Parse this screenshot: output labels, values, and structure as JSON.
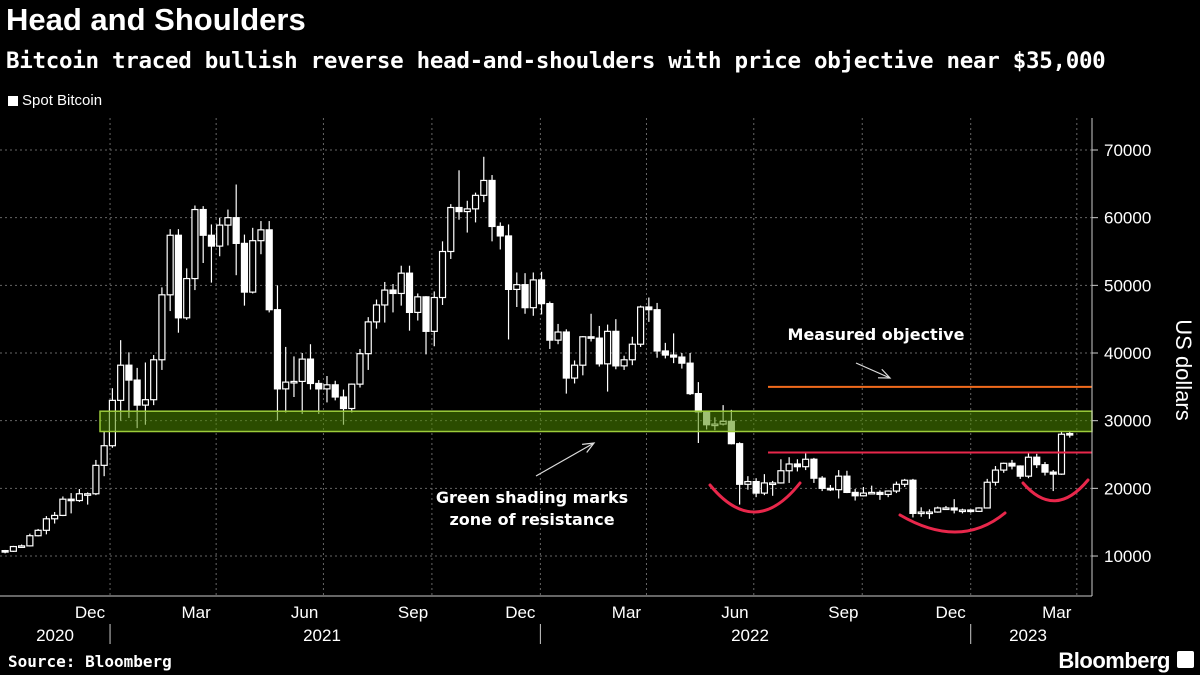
{
  "title": "Head and Shoulders",
  "subtitle": "Bitcoin traced bullish reverse head-and-shoulders with price objective near $35,000",
  "legend": "Spot Bitcoin",
  "source": "Source: Bloomberg",
  "logo": "Bloomberg",
  "colors": {
    "background": "#000000",
    "candle": "#ffffff",
    "resistance_zone": "#4f8a00",
    "resistance_border": "#9ccc3a",
    "objective_line": "#f26b1d",
    "neckline": "#e8274b",
    "shoulder_arcs": "#e8274b"
  },
  "chart_data": {
    "type": "candlestick",
    "ylabel": "US dollars",
    "ylim": [
      3000,
      75000
    ],
    "yticks": [
      10000,
      20000,
      30000,
      40000,
      50000,
      60000,
      70000
    ],
    "grid": true,
    "xticks": [
      {
        "label": "Dec",
        "date": "2020-12-15"
      },
      {
        "label": "Mar",
        "date": "2021-03-15"
      },
      {
        "label": "Jun",
        "date": "2021-06-15"
      },
      {
        "label": "Sep",
        "date": "2021-09-15"
      },
      {
        "label": "Dec",
        "date": "2021-12-15"
      },
      {
        "label": "Mar",
        "date": "2022-03-15"
      },
      {
        "label": "Jun",
        "date": "2022-06-15"
      },
      {
        "label": "Sep",
        "date": "2022-09-15"
      },
      {
        "label": "Dec",
        "date": "2022-12-15"
      },
      {
        "label": "Mar",
        "date": "2023-03-15"
      }
    ],
    "years": [
      {
        "label": "2020"
      },
      {
        "label": "2021"
      },
      {
        "label": "2022"
      },
      {
        "label": "2023"
      }
    ],
    "resistance_zone": [
      28400,
      31400
    ],
    "objective_level": 35000,
    "neckline_level": 25300,
    "annotations": {
      "objective": "Measured objective",
      "zone_line1": "Green shading marks",
      "zone_line2": "zone of resistance"
    },
    "columns": [
      "week_ending",
      "open",
      "high",
      "low",
      "close"
    ],
    "candles": [
      [
        "2020-10-04",
        10800,
        10900,
        10400,
        10700
      ],
      [
        "2020-10-11",
        10700,
        11500,
        10600,
        11400
      ],
      [
        "2020-10-18",
        11400,
        11700,
        11200,
        11500
      ],
      [
        "2020-10-25",
        11500,
        13300,
        11400,
        13000
      ],
      [
        "2020-11-01",
        13000,
        14000,
        12900,
        13800
      ],
      [
        "2020-11-08",
        13800,
        15900,
        13200,
        15500
      ],
      [
        "2020-11-15",
        15500,
        16500,
        14800,
        16000
      ],
      [
        "2020-11-22",
        16000,
        18800,
        15900,
        18400
      ],
      [
        "2020-11-29",
        18400,
        19300,
        16300,
        18200
      ],
      [
        "2020-12-06",
        18200,
        19900,
        18000,
        19200
      ],
      [
        "2020-12-13",
        19200,
        19400,
        17600,
        19200
      ],
      [
        "2020-12-20",
        19200,
        24200,
        19000,
        23400
      ],
      [
        "2020-12-27",
        23400,
        28400,
        21800,
        26300
      ],
      [
        "2021-01-03",
        26300,
        34800,
        26000,
        33000
      ],
      [
        "2021-01-10",
        33000,
        41900,
        30000,
        38200
      ],
      [
        "2021-01-17",
        38200,
        40100,
        30400,
        36000
      ],
      [
        "2021-01-24",
        36000,
        37800,
        28900,
        32300
      ],
      [
        "2021-01-31",
        32300,
        38600,
        29400,
        33100
      ],
      [
        "2021-02-07",
        33100,
        39700,
        32300,
        39000
      ],
      [
        "2021-02-14",
        39000,
        49700,
        37500,
        48600
      ],
      [
        "2021-02-21",
        48600,
        58300,
        46200,
        57400
      ],
      [
        "2021-02-28",
        57400,
        58300,
        43000,
        45200
      ],
      [
        "2021-03-07",
        45200,
        52500,
        44900,
        51000
      ],
      [
        "2021-03-14",
        51000,
        61800,
        49300,
        61200
      ],
      [
        "2021-03-21",
        61200,
        61700,
        53300,
        57400
      ],
      [
        "2021-03-28",
        57400,
        59000,
        50400,
        55800
      ],
      [
        "2021-04-04",
        55800,
        60000,
        54300,
        58900
      ],
      [
        "2021-04-11",
        58900,
        61200,
        55900,
        60000
      ],
      [
        "2021-04-18",
        60000,
        64900,
        51500,
        56200
      ],
      [
        "2021-04-25",
        56200,
        57500,
        47000,
        49000
      ],
      [
        "2021-05-02",
        49000,
        58500,
        48800,
        56600
      ],
      [
        "2021-05-09",
        56600,
        59500,
        54600,
        58200
      ],
      [
        "2021-05-16",
        58200,
        59500,
        46000,
        46400
      ],
      [
        "2021-05-23",
        46400,
        50000,
        30000,
        34700
      ],
      [
        "2021-05-30",
        34700,
        40900,
        31200,
        35700
      ],
      [
        "2021-06-06",
        35700,
        39500,
        33500,
        35800
      ],
      [
        "2021-06-13",
        35800,
        40000,
        31000,
        39100
      ],
      [
        "2021-06-20",
        39100,
        41300,
        34600,
        35500
      ],
      [
        "2021-06-27",
        35500,
        36000,
        31000,
        34700
      ],
      [
        "2021-07-04",
        34700,
        36600,
        32700,
        35300
      ],
      [
        "2021-07-11",
        35300,
        35900,
        33000,
        33500
      ],
      [
        "2021-07-18",
        33500,
        34600,
        29400,
        31800
      ],
      [
        "2021-07-25",
        31800,
        35500,
        31200,
        35400
      ],
      [
        "2021-08-01",
        35400,
        40600,
        34900,
        39900
      ],
      [
        "2021-08-08",
        39900,
        45300,
        37500,
        44600
      ],
      [
        "2021-08-15",
        44600,
        47900,
        43600,
        47100
      ],
      [
        "2021-08-22",
        47100,
        50500,
        44500,
        49300
      ],
      [
        "2021-08-29",
        49300,
        50200,
        46000,
        48800
      ],
      [
        "2021-09-05",
        48800,
        52900,
        47000,
        51800
      ],
      [
        "2021-09-12",
        51800,
        52900,
        43300,
        46000
      ],
      [
        "2021-09-19",
        46000,
        48800,
        44800,
        48300
      ],
      [
        "2021-09-26",
        48300,
        48400,
        39800,
        43200
      ],
      [
        "2021-10-03",
        43200,
        49100,
        41000,
        48200
      ],
      [
        "2021-10-10",
        48200,
        56500,
        47100,
        55000
      ],
      [
        "2021-10-17",
        55000,
        62000,
        53900,
        61500
      ],
      [
        "2021-10-24",
        61500,
        67000,
        59700,
        60900
      ],
      [
        "2021-10-31",
        60900,
        62500,
        57800,
        61300
      ],
      [
        "2021-11-07",
        61300,
        63700,
        59300,
        63300
      ],
      [
        "2021-11-14",
        63300,
        69000,
        62300,
        65500
      ],
      [
        "2021-11-21",
        65500,
        66300,
        56500,
        58700
      ],
      [
        "2021-11-28",
        58700,
        59300,
        55300,
        57300
      ],
      [
        "2021-12-05",
        57300,
        59000,
        42000,
        49400
      ],
      [
        "2021-12-12",
        49400,
        51900,
        46800,
        50100
      ],
      [
        "2021-12-19",
        50100,
        51800,
        45800,
        46700
      ],
      [
        "2021-12-26",
        46700,
        51900,
        45500,
        50800
      ],
      [
        "2022-01-02",
        50800,
        52000,
        45700,
        47300
      ],
      [
        "2022-01-09",
        47300,
        47600,
        40600,
        41900
      ],
      [
        "2022-01-16",
        41900,
        44300,
        41300,
        43100
      ],
      [
        "2022-01-23",
        43100,
        43500,
        34000,
        36300
      ],
      [
        "2022-01-30",
        36300,
        38900,
        35500,
        38200
      ],
      [
        "2022-02-06",
        38200,
        42500,
        36700,
        42400
      ],
      [
        "2022-02-13",
        42400,
        45800,
        41700,
        42200
      ],
      [
        "2022-02-20",
        42200,
        44000,
        38000,
        38400
      ],
      [
        "2022-02-27",
        38400,
        44200,
        34300,
        43200
      ],
      [
        "2022-03-06",
        43200,
        45000,
        37600,
        38100
      ],
      [
        "2022-03-13",
        38100,
        39600,
        37500,
        39000
      ],
      [
        "2022-03-20",
        39000,
        42400,
        38200,
        41300
      ],
      [
        "2022-03-27",
        41300,
        47000,
        40900,
        46800
      ],
      [
        "2022-04-03",
        46800,
        48200,
        44600,
        46400
      ],
      [
        "2022-04-10",
        46400,
        47400,
        39300,
        40300
      ],
      [
        "2022-04-17",
        40300,
        41500,
        39200,
        39700
      ],
      [
        "2022-04-24",
        39700,
        42900,
        38500,
        39400
      ],
      [
        "2022-05-01",
        39400,
        40000,
        37700,
        38500
      ],
      [
        "2022-05-08",
        38500,
        40000,
        33800,
        34000
      ],
      [
        "2022-05-15",
        34000,
        35700,
        26700,
        31300
      ],
      [
        "2022-05-22",
        31300,
        31500,
        28700,
        29400
      ],
      [
        "2022-05-29",
        29400,
        30500,
        28600,
        29500
      ],
      [
        "2022-06-05",
        29500,
        32300,
        29300,
        29900
      ],
      [
        "2022-06-12",
        29900,
        31600,
        26500,
        26600
      ],
      [
        "2022-06-19",
        26600,
        26800,
        17600,
        20600
      ],
      [
        "2022-06-26",
        20600,
        21800,
        19800,
        21000
      ],
      [
        "2022-07-03",
        21000,
        21500,
        18700,
        19300
      ],
      [
        "2022-07-10",
        19300,
        22100,
        19000,
        20800
      ],
      [
        "2022-07-17",
        20800,
        21100,
        18900,
        20800
      ],
      [
        "2022-07-24",
        20800,
        24300,
        20700,
        22600
      ],
      [
        "2022-07-31",
        22600,
        24600,
        20800,
        23600
      ],
      [
        "2022-08-07",
        23600,
        24300,
        22500,
        23200
      ],
      [
        "2022-08-14",
        23200,
        25200,
        22700,
        24300
      ],
      [
        "2022-08-21",
        24300,
        24500,
        20800,
        21500
      ],
      [
        "2022-08-28",
        21500,
        21800,
        19600,
        20000
      ],
      [
        "2022-09-04",
        20000,
        20500,
        19600,
        19800
      ],
      [
        "2022-09-11",
        19800,
        22700,
        18500,
        21800
      ],
      [
        "2022-09-18",
        21800,
        22600,
        19300,
        19400
      ],
      [
        "2022-09-25",
        19400,
        19900,
        18200,
        18900
      ],
      [
        "2022-10-02",
        18900,
        20200,
        18800,
        19300
      ],
      [
        "2022-10-09",
        19300,
        20400,
        19100,
        19400
      ],
      [
        "2022-10-16",
        19400,
        19700,
        18300,
        19100
      ],
      [
        "2022-10-23",
        19100,
        19700,
        18700,
        19600
      ],
      [
        "2022-10-30",
        19600,
        21000,
        19300,
        20600
      ],
      [
        "2022-11-06",
        20600,
        21400,
        20200,
        21200
      ],
      [
        "2022-11-13",
        21200,
        21400,
        15700,
        16300
      ],
      [
        "2022-11-20",
        16300,
        17200,
        15800,
        16500
      ],
      [
        "2022-11-27",
        16500,
        16900,
        15500,
        16500
      ],
      [
        "2022-12-04",
        16500,
        17300,
        16400,
        17100
      ],
      [
        "2022-12-11",
        17100,
        17400,
        16800,
        17100
      ],
      [
        "2022-12-18",
        17100,
        18400,
        16300,
        16800
      ],
      [
        "2022-12-25",
        16800,
        17000,
        16300,
        16800
      ],
      [
        "2023-01-01",
        16800,
        16900,
        16400,
        16600
      ],
      [
        "2023-01-08",
        16600,
        17200,
        16500,
        17100
      ],
      [
        "2023-01-15",
        17100,
        21400,
        17100,
        20900
      ],
      [
        "2023-01-22",
        20900,
        23300,
        20400,
        22700
      ],
      [
        "2023-01-29",
        22700,
        23800,
        22300,
        23700
      ],
      [
        "2023-02-05",
        23700,
        24200,
        22800,
        23300
      ],
      [
        "2023-02-12",
        23300,
        23400,
        21400,
        21800
      ],
      [
        "2023-02-19",
        21800,
        25200,
        21500,
        24600
      ],
      [
        "2023-02-26",
        24600,
        25100,
        23000,
        23500
      ],
      [
        "2023-03-05",
        23500,
        23900,
        21900,
        22400
      ],
      [
        "2023-03-12",
        22400,
        22700,
        19600,
        22100
      ],
      [
        "2023-03-19",
        22100,
        28500,
        22000,
        28000
      ],
      [
        "2023-03-26",
        28100,
        28500,
        27500,
        28000
      ]
    ]
  }
}
